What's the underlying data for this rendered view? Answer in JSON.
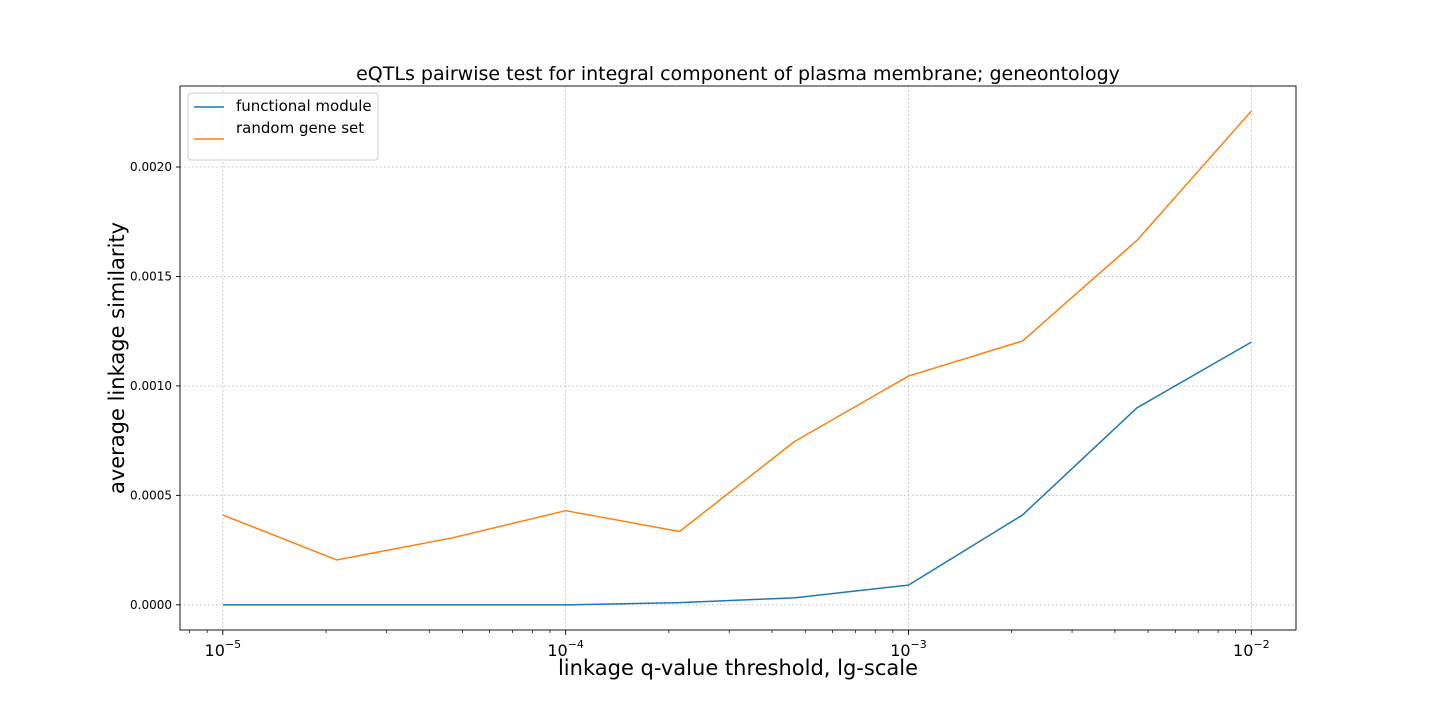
{
  "chart_data": {
    "type": "line",
    "title": "eQTLs pairwise test for integral component of plasma membrane; geneontology",
    "xlabel": "linkage q-value threshold, lg-scale",
    "ylabel": "average linkage similarity",
    "xscale": "log",
    "xlim": [
      7.5e-06,
      0.0135
    ],
    "ylim": [
      -0.000115,
      0.00237
    ],
    "grid": true,
    "legend_position": "top-left",
    "x": [
      1e-05,
      2.15e-05,
      4.64e-05,
      0.0001,
      0.000215,
      0.000464,
      0.001,
      0.00215,
      0.00464,
      0.01
    ],
    "series": [
      {
        "name": "functional module",
        "color": "#1f77b4",
        "values": [
          0.0,
          0.0,
          0.0,
          0.0,
          1e-05,
          3.2e-05,
          9e-05,
          0.00041,
          0.0009,
          0.0012
        ]
      },
      {
        "name": "random gene set",
        "color": "#ff7f0e",
        "values": [
          0.00041,
          0.000205,
          0.000305,
          0.00043,
          0.000335,
          0.000745,
          0.001045,
          0.001205,
          0.001665,
          0.002255
        ]
      }
    ],
    "yticks": [
      {
        "value": 0.0,
        "label": "0.0000"
      },
      {
        "value": 0.0005,
        "label": "0.0005"
      },
      {
        "value": 0.001,
        "label": "0.0010"
      },
      {
        "value": 0.0015,
        "label": "0.0015"
      },
      {
        "value": 0.002,
        "label": "0.0020"
      }
    ],
    "xticks": [
      {
        "value": 1e-05,
        "base": "10",
        "exponent": "−5"
      },
      {
        "value": 0.0001,
        "base": "10",
        "exponent": "−4"
      },
      {
        "value": 0.001,
        "base": "10",
        "exponent": "−3"
      },
      {
        "value": 0.01,
        "base": "10",
        "exponent": "−2"
      }
    ]
  }
}
